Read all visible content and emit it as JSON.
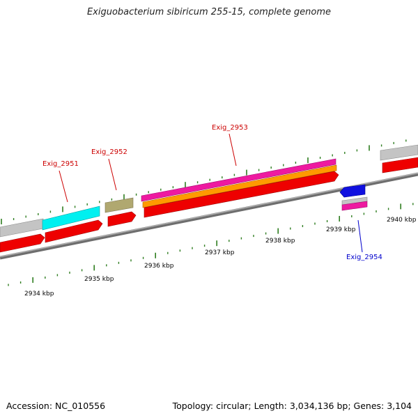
{
  "title": "Exiguobacterium sibiricum 255-15, complete genome",
  "footer": {
    "accession": "Accession: NC_010556",
    "summary": "Topology: circular; Length: 3,034,136 bp; Genes: 3,104"
  },
  "kbp_labels": [
    "2934 kbp",
    "2935 kbp",
    "2936 kbp",
    "2937 kbp",
    "2938 kbp",
    "2939 kbp",
    "2940 kbp"
  ],
  "gene_labels": [
    {
      "text": "Exig_2951",
      "color": "#cc0000"
    },
    {
      "text": "Exig_2952",
      "color": "#cc0000"
    },
    {
      "text": "Exig_2953",
      "color": "#cc0000"
    },
    {
      "text": "Exig_2954",
      "color": "#0000cc"
    }
  ],
  "colors": {
    "backbone": "#8a8a8a",
    "tick": "#2e7d1f",
    "cds": "#ee0000",
    "gene_grey": "#c4c4c4",
    "gene_cyan": "#00f0f0",
    "gene_khaki": "#b0a870",
    "gene_magenta": "#ee1aa0",
    "gene_orange": "#ff9a00",
    "gene_blue": "#1010e0"
  }
}
